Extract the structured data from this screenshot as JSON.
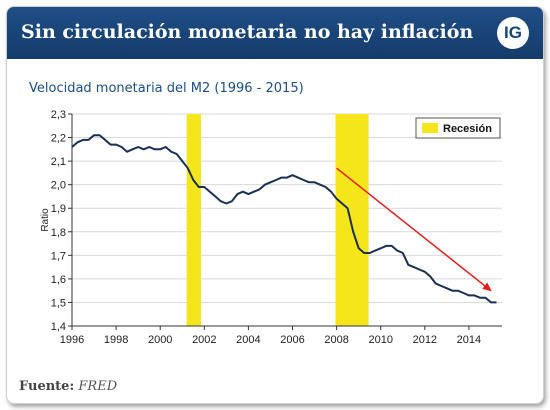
{
  "header": {
    "title": "Sin circulación monetaria no hay inflación",
    "logo_text": "IG"
  },
  "source": {
    "label": "Fuente:",
    "value": "FRED"
  },
  "colors": {
    "header": "#1a4478",
    "line": "#1a2f52",
    "recession": "#f5e61c",
    "arrow": "#e21b1b"
  },
  "chart_data": {
    "type": "line",
    "title": "Velocidad monetaria del M2 (1996 - 2015)",
    "xlabel": "",
    "ylabel": "Ratio",
    "xlim": [
      1996,
      2015.5
    ],
    "ylim": [
      1.4,
      2.3
    ],
    "x_ticks": [
      "1996",
      "1998",
      "2000",
      "2002",
      "2004",
      "2006",
      "2008",
      "2010",
      "2012",
      "2014"
    ],
    "y_ticks": [
      "1,4",
      "1,5",
      "1,6",
      "1,7",
      "1,8",
      "1,9",
      "2,0",
      "2,1",
      "2,2",
      "2,3"
    ],
    "legend": {
      "label": "Recesión",
      "placement": "top-right"
    },
    "recessions": [
      [
        2001.2,
        2001.85
      ],
      [
        2007.95,
        2009.45
      ]
    ],
    "trend_arrow": {
      "from": [
        2008.0,
        2.07
      ],
      "to": [
        2015.0,
        1.55
      ]
    },
    "grid": true,
    "series": [
      {
        "x": [
          1996.0,
          1996.25,
          1996.5,
          1996.75,
          1997.0,
          1997.25,
          1997.5,
          1997.75,
          1998.0,
          1998.25,
          1998.5,
          1998.75,
          1999.0,
          1999.25,
          1999.5,
          1999.75,
          2000.0,
          2000.25,
          2000.5,
          2000.75,
          2001.0,
          2001.25,
          2001.5,
          2001.75,
          2002.0,
          2002.25,
          2002.5,
          2002.75,
          2003.0,
          2003.25,
          2003.5,
          2003.75,
          2004.0,
          2004.25,
          2004.5,
          2004.75,
          2005.0,
          2005.25,
          2005.5,
          2005.75,
          2006.0,
          2006.25,
          2006.5,
          2006.75,
          2007.0,
          2007.25,
          2007.5,
          2007.75,
          2008.0,
          2008.25,
          2008.5,
          2008.75,
          2009.0,
          2009.25,
          2009.5,
          2009.75,
          2010.0,
          2010.25,
          2010.5,
          2010.75,
          2011.0,
          2011.25,
          2011.5,
          2011.75,
          2012.0,
          2012.25,
          2012.5,
          2012.75,
          2013.0,
          2013.25,
          2013.5,
          2013.75,
          2014.0,
          2014.25,
          2014.5,
          2014.75,
          2015.0,
          2015.25
        ],
        "y": [
          2.16,
          2.18,
          2.19,
          2.19,
          2.21,
          2.21,
          2.19,
          2.17,
          2.17,
          2.16,
          2.14,
          2.15,
          2.16,
          2.15,
          2.16,
          2.15,
          2.15,
          2.16,
          2.14,
          2.13,
          2.1,
          2.07,
          2.02,
          1.99,
          1.99,
          1.97,
          1.95,
          1.93,
          1.92,
          1.93,
          1.96,
          1.97,
          1.96,
          1.97,
          1.98,
          2.0,
          2.01,
          2.02,
          2.03,
          2.03,
          2.04,
          2.03,
          2.02,
          2.01,
          2.01,
          2.0,
          1.99,
          1.97,
          1.94,
          1.92,
          1.9,
          1.8,
          1.73,
          1.71,
          1.71,
          1.72,
          1.73,
          1.74,
          1.74,
          1.72,
          1.71,
          1.66,
          1.65,
          1.64,
          1.63,
          1.61,
          1.58,
          1.57,
          1.56,
          1.55,
          1.55,
          1.54,
          1.53,
          1.53,
          1.52,
          1.52,
          1.5,
          1.5
        ]
      }
    ]
  }
}
